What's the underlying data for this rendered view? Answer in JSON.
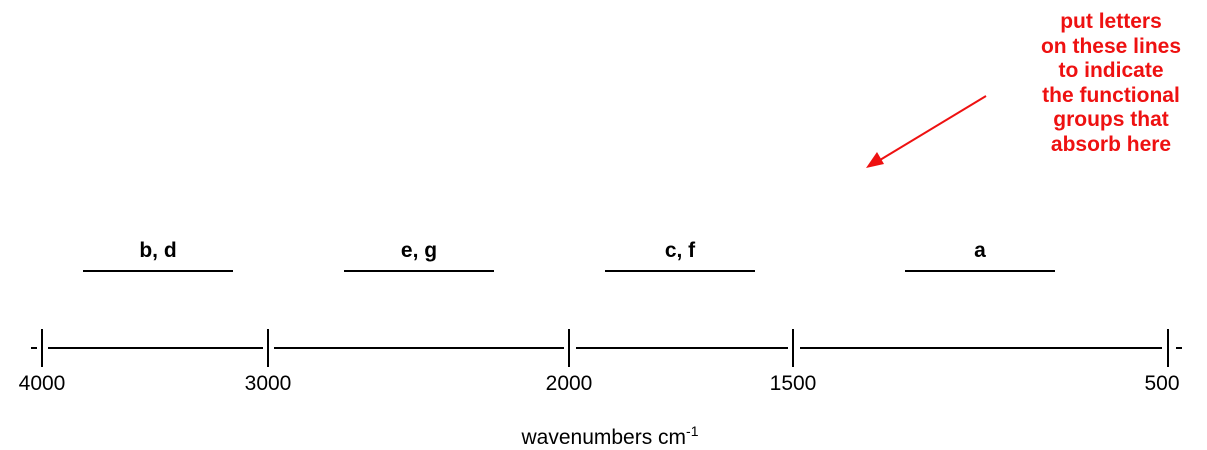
{
  "annotation": {
    "lines": [
      "put letters",
      "on these lines",
      "to indicate",
      "the functional",
      "groups that",
      "absorb here"
    ],
    "color": "#ee1111"
  },
  "answer_labels": [
    "b, d",
    "e, g",
    "c, f",
    "a"
  ],
  "axis": {
    "tick_labels": [
      "4000",
      "3000",
      "2000",
      "1500",
      "500"
    ],
    "title": "wavenumbers cm",
    "title_superscript": "-1"
  }
}
